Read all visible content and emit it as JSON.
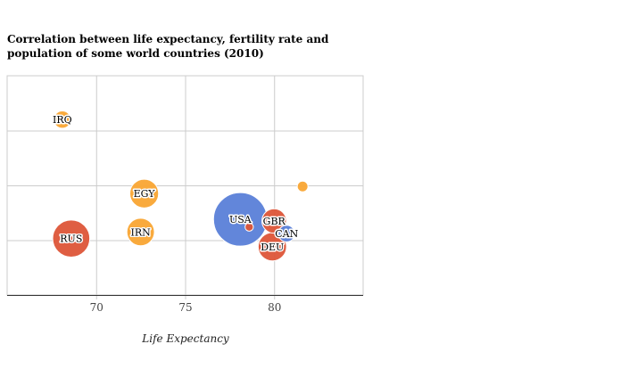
{
  "chart_data": {
    "type": "bubble",
    "title": "Correlation between life expectancy, fertility rate and population of some world countries (2010)",
    "xlabel": "Life Expectancy",
    "ylabel": "",
    "xlim": [
      65,
      85
    ],
    "ylim": [
      1,
      5
    ],
    "x_ticks": [
      70,
      75,
      80
    ],
    "y_ticks": [
      1,
      2,
      3,
      4,
      5
    ],
    "y_tick_labels_visible": false,
    "grid": true,
    "legend": "none",
    "colors": {
      "Middle East": "#f9a533",
      "Europe": "#dd5538",
      "North America": "#5a80d8",
      "outline": "#ffffff",
      "grid": "#cccccc",
      "axis": "#333333"
    },
    "points": [
      {
        "label": "IRQ",
        "x": 68.1,
        "y": 4.2,
        "size": 1.3,
        "region": "Middle East"
      },
      {
        "label": "EGY",
        "x": 72.7,
        "y": 2.85,
        "size": 3.6,
        "region": "Middle East"
      },
      {
        "label": "IRN",
        "x": 72.5,
        "y": 2.15,
        "size": 3.3,
        "region": "Middle East"
      },
      {
        "label": "RUS",
        "x": 68.6,
        "y": 2.03,
        "size": 6.0,
        "region": "Europe"
      },
      {
        "label": "USA",
        "x": 78.1,
        "y": 2.38,
        "size": 12.5,
        "region": "North America"
      },
      {
        "label": "GBR",
        "x": 80.0,
        "y": 2.35,
        "size": 2.6,
        "region": "Europe"
      },
      {
        "label": "CAN",
        "x": 80.7,
        "y": 2.12,
        "size": 1.2,
        "region": "North America"
      },
      {
        "label": "DEU",
        "x": 79.9,
        "y": 1.88,
        "size": 3.5,
        "region": "Europe"
      },
      {
        "label": "",
        "x": 81.6,
        "y": 2.98,
        "size": 0.5,
        "region": "Middle East"
      },
      {
        "label": "",
        "x": 78.6,
        "y": 2.24,
        "size": 0.3,
        "region": "Europe"
      }
    ]
  }
}
